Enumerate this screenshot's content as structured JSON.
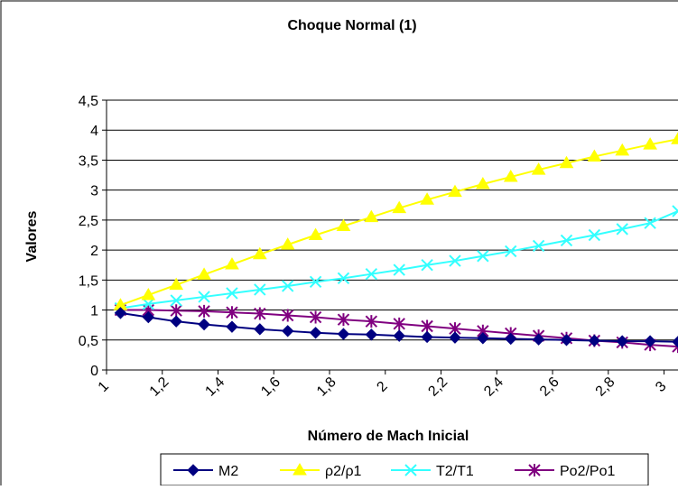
{
  "chart_data": {
    "type": "line",
    "title": "Choque Normal (1)",
    "xlabel": "Número de Mach Inicial",
    "ylabel": "Valores",
    "xlim": [
      1,
      3.05
    ],
    "ylim": [
      0,
      4.5
    ],
    "x_ticks": [
      1,
      1.2,
      1.4,
      1.6,
      1.8,
      2,
      2.2,
      2.4,
      2.6,
      2.8,
      3
    ],
    "x_tick_labels": [
      "1",
      "1,2",
      "1,4",
      "1,6",
      "1,8",
      "2",
      "2,2",
      "2,4",
      "2,6",
      "2,8",
      "3"
    ],
    "y_ticks": [
      0,
      0.5,
      1,
      1.5,
      2,
      2.5,
      3,
      3.5,
      4,
      4.5
    ],
    "y_tick_labels": [
      "0",
      "0,5",
      "1",
      "1,5",
      "2",
      "2,5",
      "3",
      "3,5",
      "4",
      "4,5"
    ],
    "grid": "horizontal",
    "legend_position": "bottom",
    "x": [
      1.05,
      1.15,
      1.25,
      1.35,
      1.45,
      1.55,
      1.65,
      1.75,
      1.85,
      1.95,
      2.05,
      2.15,
      2.25,
      2.35,
      2.45,
      2.55,
      2.65,
      2.75,
      2.85,
      2.95,
      3.05
    ],
    "series": [
      {
        "name": "M2",
        "color": "#000080",
        "marker": "diamond",
        "values": [
          0.95,
          0.88,
          0.81,
          0.76,
          0.72,
          0.68,
          0.65,
          0.62,
          0.6,
          0.59,
          0.57,
          0.55,
          0.54,
          0.53,
          0.52,
          0.51,
          0.5,
          0.49,
          0.48,
          0.48,
          0.47
        ]
      },
      {
        "name": "ρ2/ρ1",
        "color": "#FFFF00",
        "marker": "triangle",
        "values": [
          1.08,
          1.25,
          1.42,
          1.59,
          1.76,
          1.93,
          2.09,
          2.25,
          2.4,
          2.55,
          2.7,
          2.84,
          2.97,
          3.1,
          3.22,
          3.34,
          3.45,
          3.56,
          3.66,
          3.76,
          3.85
        ]
      },
      {
        "name": "T2/T1",
        "color": "#33FFFF",
        "marker": "x",
        "values": [
          1.03,
          1.1,
          1.16,
          1.22,
          1.28,
          1.34,
          1.4,
          1.47,
          1.53,
          1.6,
          1.67,
          1.75,
          1.82,
          1.9,
          1.98,
          2.07,
          2.16,
          2.25,
          2.35,
          2.45,
          2.65
        ]
      },
      {
        "name": "Po2/Po1",
        "color": "#800080",
        "marker": "star",
        "values": [
          1.0,
          1.0,
          0.99,
          0.98,
          0.96,
          0.94,
          0.91,
          0.88,
          0.84,
          0.81,
          0.77,
          0.73,
          0.69,
          0.65,
          0.61,
          0.57,
          0.53,
          0.49,
          0.46,
          0.42,
          0.39
        ]
      }
    ]
  }
}
